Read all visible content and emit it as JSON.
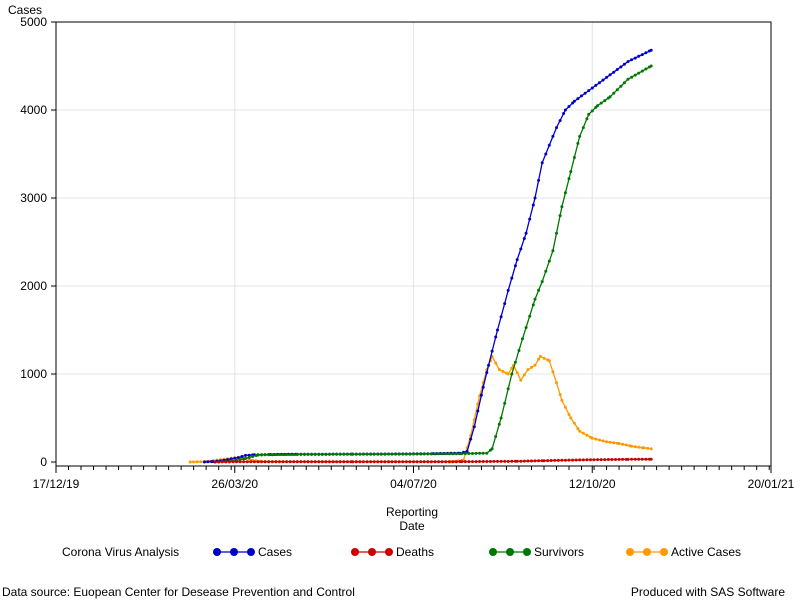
{
  "chart_data": {
    "type": "line",
    "title": "",
    "ylabel": "Cases",
    "xlabel_lines": [
      "Reporting",
      "Date"
    ],
    "xlim": [
      "2019-12-17",
      "2021-01-20"
    ],
    "ylim": [
      0,
      5000
    ],
    "yticks": [
      0,
      1000,
      2000,
      3000,
      4000,
      5000
    ],
    "xticks": [
      {
        "date": "2019-12-17",
        "label": "17/12/19"
      },
      {
        "date": "2020-03-26",
        "label": "26/03/20"
      },
      {
        "date": "2020-07-04",
        "label": "04/07/20"
      },
      {
        "date": "2020-10-12",
        "label": "12/10/20"
      },
      {
        "date": "2021-01-20",
        "label": "20/01/21"
      }
    ],
    "grid": true,
    "legend_title": "Corona Virus Analysis",
    "legend_position": "bottom",
    "series": [
      {
        "name": "Cases",
        "color": "#0000cc",
        "points": [
          [
            "2020-03-09",
            0
          ],
          [
            "2020-03-14",
            5
          ],
          [
            "2020-03-20",
            20
          ],
          [
            "2020-03-28",
            50
          ],
          [
            "2020-04-01",
            75
          ],
          [
            "2020-04-06",
            82
          ],
          [
            "2020-04-15",
            85
          ],
          [
            "2020-04-30",
            88
          ],
          [
            "2020-05-31",
            90
          ],
          [
            "2020-06-30",
            92
          ],
          [
            "2020-07-15",
            95
          ],
          [
            "2020-07-30",
            100
          ],
          [
            "2020-08-03",
            120
          ],
          [
            "2020-08-07",
            400
          ],
          [
            "2020-08-12",
            850
          ],
          [
            "2020-08-15",
            1100
          ],
          [
            "2020-08-20",
            1500
          ],
          [
            "2020-08-26",
            1950
          ],
          [
            "2020-08-31",
            2300
          ],
          [
            "2020-09-05",
            2600
          ],
          [
            "2020-09-10",
            3000
          ],
          [
            "2020-09-14",
            3400
          ],
          [
            "2020-09-18",
            3600
          ],
          [
            "2020-09-22",
            3800
          ],
          [
            "2020-09-27",
            4000
          ],
          [
            "2020-10-02",
            4100
          ],
          [
            "2020-10-12",
            4250
          ],
          [
            "2020-10-22",
            4400
          ],
          [
            "2020-11-01",
            4550
          ],
          [
            "2020-11-11",
            4650
          ],
          [
            "2020-11-14",
            4680
          ]
        ]
      },
      {
        "name": "Deaths",
        "color": "#cc0000",
        "points": [
          [
            "2020-03-15",
            0
          ],
          [
            "2020-03-25",
            2
          ],
          [
            "2020-04-10",
            3
          ],
          [
            "2020-05-31",
            3
          ],
          [
            "2020-07-31",
            4
          ],
          [
            "2020-08-31",
            8
          ],
          [
            "2020-09-15",
            15
          ],
          [
            "2020-10-01",
            22
          ],
          [
            "2020-10-15",
            27
          ],
          [
            "2020-11-01",
            30
          ],
          [
            "2020-11-14",
            32
          ]
        ]
      },
      {
        "name": "Survivors",
        "color": "#007700",
        "points": [
          [
            "2020-03-15",
            0
          ],
          [
            "2020-03-25",
            10
          ],
          [
            "2020-04-01",
            40
          ],
          [
            "2020-04-08",
            80
          ],
          [
            "2020-04-20",
            85
          ],
          [
            "2020-05-31",
            88
          ],
          [
            "2020-06-30",
            90
          ],
          [
            "2020-07-31",
            95
          ],
          [
            "2020-08-14",
            100
          ],
          [
            "2020-08-17",
            150
          ],
          [
            "2020-08-22",
            500
          ],
          [
            "2020-08-28",
            1000
          ],
          [
            "2020-09-03",
            1400
          ],
          [
            "2020-09-10",
            1850
          ],
          [
            "2020-09-14",
            2050
          ],
          [
            "2020-09-20",
            2400
          ],
          [
            "2020-09-25",
            2900
          ],
          [
            "2020-09-30",
            3300
          ],
          [
            "2020-10-05",
            3700
          ],
          [
            "2020-10-10",
            3950
          ],
          [
            "2020-10-15",
            4050
          ],
          [
            "2020-10-22",
            4150
          ],
          [
            "2020-11-01",
            4350
          ],
          [
            "2020-11-14",
            4500
          ]
        ]
      },
      {
        "name": "Active Cases",
        "color": "#ff9900",
        "points": [
          [
            "2020-03-01",
            0
          ],
          [
            "2020-03-10",
            5
          ],
          [
            "2020-03-20",
            30
          ],
          [
            "2020-03-28",
            55
          ],
          [
            "2020-04-01",
            45
          ],
          [
            "2020-04-05",
            20
          ],
          [
            "2020-04-10",
            5
          ],
          [
            "2020-05-31",
            3
          ],
          [
            "2020-07-25",
            2
          ],
          [
            "2020-08-01",
            20
          ],
          [
            "2020-08-05",
            300
          ],
          [
            "2020-08-10",
            750
          ],
          [
            "2020-08-14",
            1050
          ],
          [
            "2020-08-17",
            1200
          ],
          [
            "2020-08-21",
            1050
          ],
          [
            "2020-08-26",
            1000
          ],
          [
            "2020-08-29",
            1100
          ],
          [
            "2020-09-02",
            930
          ],
          [
            "2020-09-06",
            1050
          ],
          [
            "2020-09-10",
            1100
          ],
          [
            "2020-09-13",
            1200
          ],
          [
            "2020-09-18",
            1150
          ],
          [
            "2020-09-22",
            900
          ],
          [
            "2020-09-25",
            700
          ],
          [
            "2020-09-30",
            500
          ],
          [
            "2020-10-05",
            350
          ],
          [
            "2020-10-12",
            270
          ],
          [
            "2020-10-20",
            230
          ],
          [
            "2020-10-27",
            210
          ],
          [
            "2020-11-03",
            180
          ],
          [
            "2020-11-10",
            160
          ],
          [
            "2020-11-14",
            150
          ]
        ]
      }
    ]
  },
  "footer": {
    "source": "Data source: Euopean Center for Desease Prevention and Control",
    "produced": "Produced with SAS Software"
  }
}
